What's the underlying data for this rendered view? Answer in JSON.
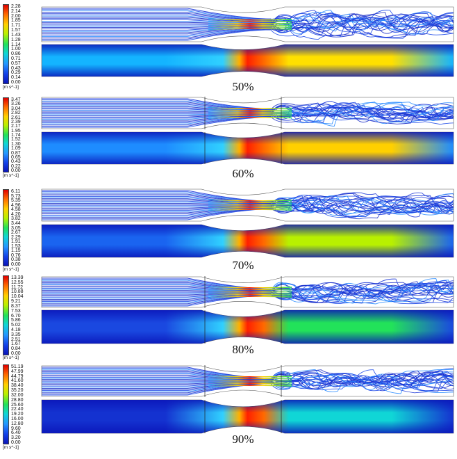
{
  "units_label": "[m s^-1]",
  "panels": [
    {
      "label": "50%",
      "ticks": [
        "2.28",
        "2.14",
        "2.00",
        "1.85",
        "1.71",
        "1.57",
        "1.43",
        "1.28",
        "1.14",
        "1.00",
        "0.86",
        "0.71",
        "0.57",
        "0.43",
        "0.29",
        "0.14",
        "0.00"
      ]
    },
    {
      "label": "60%",
      "ticks": [
        "3.47",
        "3.26",
        "3.04",
        "2.82",
        "2.61",
        "2.39",
        "2.17",
        "1.95",
        "1.74",
        "1.52",
        "1.30",
        "1.09",
        "0.87",
        "0.65",
        "0.43",
        "0.22",
        "0.00"
      ]
    },
    {
      "label": "70%",
      "ticks": [
        "6.11",
        "5.73",
        "5.35",
        "4.96",
        "4.58",
        "4.20",
        "3.82",
        "3.44",
        "3.05",
        "2.67",
        "2.29",
        "1.91",
        "1.53",
        "1.15",
        "0.76",
        "0.38",
        "0.00"
      ]
    },
    {
      "label": "80%",
      "ticks": [
        "13.39",
        "12.55",
        "11.72",
        "10.88",
        "10.04",
        "9.21",
        "8.37",
        "7.53",
        "6.70",
        "5.86",
        "5.02",
        "4.18",
        "3.35",
        "2.51",
        "1.67",
        "0.84",
        "0.00"
      ]
    },
    {
      "label": "90%",
      "ticks": [
        "51.19",
        "47.99",
        "44.79",
        "41.60",
        "38.40",
        "35.20",
        "32.00",
        "28.80",
        "25.60",
        "22.40",
        "19.20",
        "16.00",
        "12.80",
        "9.60",
        "6.40",
        "3.20",
        "0.00"
      ]
    }
  ]
}
